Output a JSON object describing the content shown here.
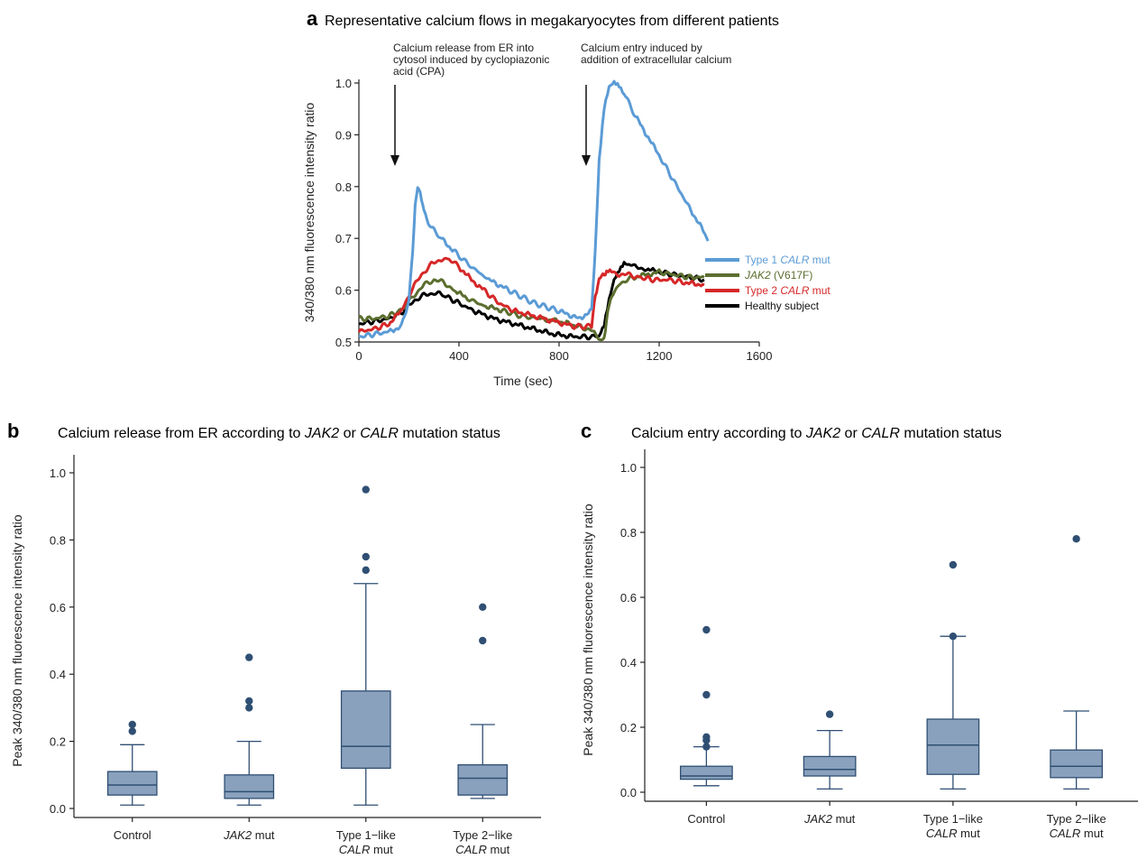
{
  "panel_a": {
    "letter": "a",
    "title": "Representative calcium flows in megakaryocytes from different patients",
    "annotation_1": [
      "Calcium release from ER into",
      "cytosol induced by cyclopiazonic",
      "acid (CPA)"
    ],
    "annotation_2": [
      "Calcium entry induced by",
      "addition of extracellular calcium"
    ],
    "legend": [
      {
        "pre": "Type 1 ",
        "it": "CALR",
        "post": " mut",
        "color": "#5b9bd5"
      },
      {
        "pre": "",
        "it": "JAK2",
        "post": " (V617F)",
        "color": "#5b6e2e"
      },
      {
        "pre": "Type 2 ",
        "it": "CALR",
        "post": " mut",
        "color": "#d62728"
      },
      {
        "pre": "Healthy subject",
        "it": "",
        "post": "",
        "color": "#000000"
      }
    ]
  },
  "panel_b": {
    "letter": "b",
    "title_pre": "Calcium release from ER according to ",
    "title_it1": "JAK2",
    "title_mid": " or ",
    "title_it2": "CALR",
    "title_post": " mutation status"
  },
  "panel_c": {
    "letter": "c",
    "title_pre": "Calcium entry according to ",
    "title_it1": "JAK2",
    "title_mid": " or ",
    "title_it2": "CALR",
    "title_post": " mutation status"
  },
  "box_categories": [
    {
      "l1_pre": "Control",
      "l1_it": "",
      "l1_post": "",
      "l2_it": "",
      "l2_post": ""
    },
    {
      "l1_pre": "",
      "l1_it": "JAK2",
      "l1_post": " mut",
      "l2_it": "",
      "l2_post": ""
    },
    {
      "l1_pre": "Type 1−like",
      "l1_it": "",
      "l1_post": "",
      "l2_it": "CALR",
      "l2_post": " mut"
    },
    {
      "l1_pre": "Type 2−like",
      "l1_it": "",
      "l1_post": "",
      "l2_it": "CALR",
      "l2_post": " mut"
    }
  ],
  "chart_data": [
    {
      "type": "line",
      "title": "Representative calcium flows in megakaryocytes from different patients",
      "xlabel": "Time (sec)",
      "ylabel": "340/380 nm fluorescence intensity ratio",
      "xlim": [
        0,
        1600
      ],
      "ylim": [
        0.5,
        1.0
      ],
      "xticks": [
        0,
        400,
        800,
        1200,
        1600
      ],
      "yticks": [
        0.5,
        0.6,
        0.7,
        0.8,
        0.9,
        1.0
      ],
      "series": [
        {
          "name": "Type 1 CALR mut",
          "color": "#5b9bd5",
          "x": [
            0,
            60,
            120,
            170,
            200,
            215,
            225,
            235,
            245,
            260,
            290,
            330,
            380,
            450,
            520,
            600,
            700,
            800,
            880,
            930,
            945,
            960,
            980,
            1000,
            1020,
            1040,
            1060,
            1100,
            1150,
            1200,
            1260,
            1320,
            1370,
            1395
          ],
          "y": [
            0.51,
            0.515,
            0.52,
            0.53,
            0.58,
            0.68,
            0.76,
            0.8,
            0.79,
            0.75,
            0.72,
            0.7,
            0.675,
            0.645,
            0.62,
            0.6,
            0.575,
            0.56,
            0.545,
            0.56,
            0.68,
            0.85,
            0.95,
            0.99,
            1.0,
            0.995,
            0.98,
            0.94,
            0.9,
            0.86,
            0.81,
            0.76,
            0.72,
            0.695
          ]
        },
        {
          "name": "JAK2 (V617F)",
          "color": "#5b6e2e",
          "x": [
            0,
            60,
            120,
            180,
            220,
            260,
            300,
            340,
            380,
            430,
            500,
            580,
            650,
            720,
            800,
            880,
            940,
            970,
            985,
            995,
            1010,
            1040,
            1070,
            1100,
            1150,
            1200,
            1260,
            1320,
            1380
          ],
          "y": [
            0.545,
            0.545,
            0.55,
            0.565,
            0.59,
            0.61,
            0.62,
            0.615,
            0.6,
            0.585,
            0.57,
            0.56,
            0.55,
            0.545,
            0.54,
            0.53,
            0.52,
            0.5,
            0.52,
            0.56,
            0.59,
            0.61,
            0.62,
            0.625,
            0.63,
            0.635,
            0.63,
            0.625,
            0.625
          ]
        },
        {
          "name": "Type 2 CALR mut",
          "color": "#d62728",
          "x": [
            0,
            60,
            120,
            170,
            210,
            250,
            290,
            330,
            360,
            400,
            450,
            500,
            560,
            620,
            700,
            780,
            860,
            930,
            945,
            960,
            975,
            990,
            1010,
            1040,
            1080,
            1120,
            1180,
            1240,
            1300,
            1380
          ],
          "y": [
            0.52,
            0.525,
            0.535,
            0.56,
            0.6,
            0.63,
            0.65,
            0.66,
            0.66,
            0.645,
            0.62,
            0.6,
            0.575,
            0.56,
            0.55,
            0.54,
            0.53,
            0.53,
            0.59,
            0.62,
            0.63,
            0.635,
            0.635,
            0.63,
            0.63,
            0.625,
            0.62,
            0.62,
            0.615,
            0.61
          ]
        },
        {
          "name": "Healthy subject",
          "color": "#000000",
          "x": [
            0,
            60,
            120,
            180,
            220,
            260,
            300,
            340,
            400,
            460,
            540,
            620,
            700,
            780,
            860,
            920,
            960,
            980,
            1000,
            1020,
            1040,
            1060,
            1080,
            1110,
            1150,
            1200,
            1260,
            1320,
            1380
          ],
          "y": [
            0.535,
            0.54,
            0.545,
            0.56,
            0.58,
            0.59,
            0.595,
            0.59,
            0.575,
            0.56,
            0.545,
            0.535,
            0.525,
            0.515,
            0.51,
            0.51,
            0.51,
            0.53,
            0.58,
            0.62,
            0.64,
            0.655,
            0.65,
            0.645,
            0.64,
            0.635,
            0.63,
            0.625,
            0.62
          ]
        }
      ]
    },
    {
      "type": "box",
      "title": "Calcium release from ER according to JAK2 or CALR mutation status",
      "ylabel": "Peak 340/380 nm fluorescence intensity ratio",
      "ylim": [
        0,
        1.0
      ],
      "yticks": [
        0.0,
        0.2,
        0.4,
        0.6,
        0.8,
        1.0
      ],
      "categories": [
        "Control",
        "JAK2 mut",
        "Type 1−like CALR mut",
        "Type 2−like CALR mut"
      ],
      "boxes": [
        {
          "whislo": 0.01,
          "q1": 0.04,
          "med": 0.07,
          "q3": 0.11,
          "whishi": 0.19,
          "fliers": [
            0.23,
            0.25
          ]
        },
        {
          "whislo": 0.01,
          "q1": 0.03,
          "med": 0.05,
          "q3": 0.1,
          "whishi": 0.2,
          "fliers": [
            0.3,
            0.32,
            0.45
          ]
        },
        {
          "whislo": 0.01,
          "q1": 0.12,
          "med": 0.185,
          "q3": 0.35,
          "whishi": 0.67,
          "fliers": [
            0.71,
            0.75,
            0.95
          ]
        },
        {
          "whislo": 0.03,
          "q1": 0.04,
          "med": 0.09,
          "q3": 0.13,
          "whishi": 0.25,
          "fliers": [
            0.5,
            0.6
          ]
        }
      ],
      "color": "#8aa1bd",
      "edge": "#2f4f73"
    },
    {
      "type": "box",
      "title": "Calcium entry according to JAK2 or CALR mutation status",
      "ylabel": "Peak 340/380 nm fluorescence intensity ratio",
      "ylim": [
        0,
        1.0
      ],
      "yticks": [
        0.0,
        0.2,
        0.4,
        0.6,
        0.8,
        1.0
      ],
      "categories": [
        "Control",
        "JAK2 mut",
        "Type 1−like CALR mut",
        "Type 2−like CALR mut"
      ],
      "boxes": [
        {
          "whislo": 0.02,
          "q1": 0.04,
          "med": 0.05,
          "q3": 0.08,
          "whishi": 0.14,
          "fliers": [
            0.14,
            0.16,
            0.17,
            0.3,
            0.5
          ]
        },
        {
          "whislo": 0.01,
          "q1": 0.05,
          "med": 0.07,
          "q3": 0.11,
          "whishi": 0.19,
          "fliers": [
            0.24
          ]
        },
        {
          "whislo": 0.01,
          "q1": 0.055,
          "med": 0.145,
          "q3": 0.225,
          "whishi": 0.48,
          "fliers": [
            0.48,
            0.7
          ]
        },
        {
          "whislo": 0.01,
          "q1": 0.045,
          "med": 0.08,
          "q3": 0.13,
          "whishi": 0.25,
          "fliers": [
            0.78
          ]
        }
      ],
      "color": "#8aa1bd",
      "edge": "#2f4f73"
    }
  ]
}
